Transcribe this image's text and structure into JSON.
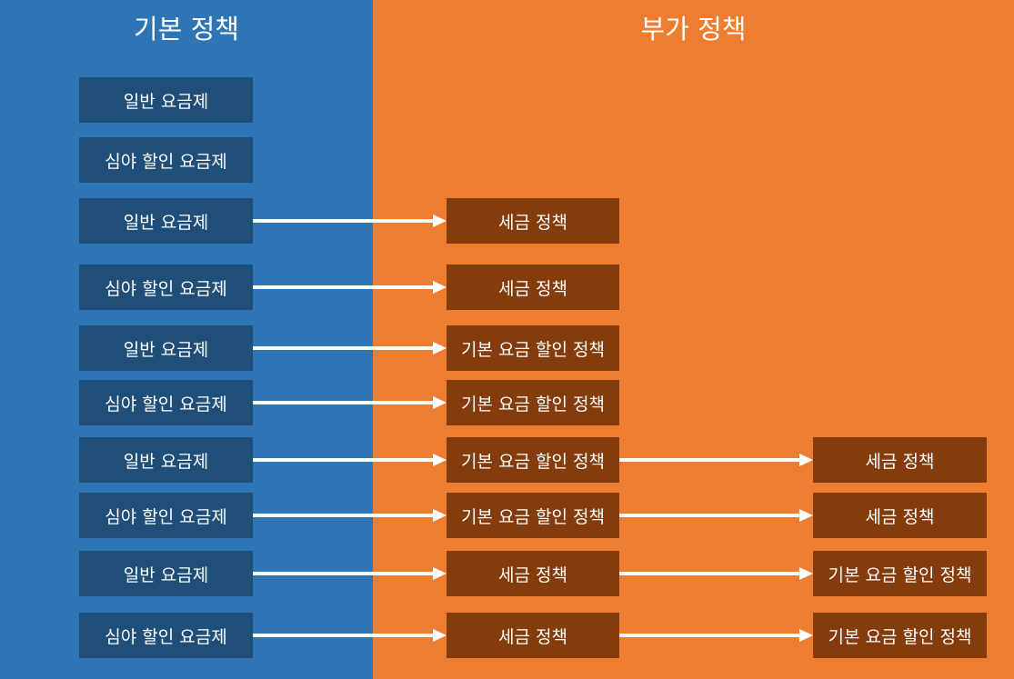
{
  "colors": {
    "left_panel": "#2e75b6",
    "right_panel": "#ed7d31",
    "base_box": "#1f4e79",
    "addon_box": "#843c0c",
    "arrow": "#ffffff",
    "text": "#ffffff"
  },
  "headings": {
    "base": "기본 정책",
    "addon": "부가 정책"
  },
  "rows": [
    {
      "items": [
        "일반 요금제"
      ]
    },
    {
      "items": [
        "심야 할인 요금제"
      ]
    },
    {
      "items": [
        "일반 요금제",
        "세금 정책"
      ]
    },
    {
      "items": [
        "심야 할인 요금제",
        "세금 정책"
      ]
    },
    {
      "items": [
        "일반 요금제",
        "기본 요금 할인 정책"
      ]
    },
    {
      "items": [
        "심야 할인 요금제",
        "기본 요금 할인 정책"
      ]
    },
    {
      "items": [
        "일반 요금제",
        "기본 요금 할인 정책",
        "세금 정책"
      ]
    },
    {
      "items": [
        "심야 할인 요금제",
        "기본 요금 할인 정책",
        "세금 정책"
      ]
    },
    {
      "items": [
        "일반 요금제",
        "세금 정책",
        "기본 요금 할인 정책"
      ]
    },
    {
      "items": [
        "심야 할인 요금제",
        "세금 정책",
        "기본 요금 할인 정책"
      ]
    }
  ]
}
